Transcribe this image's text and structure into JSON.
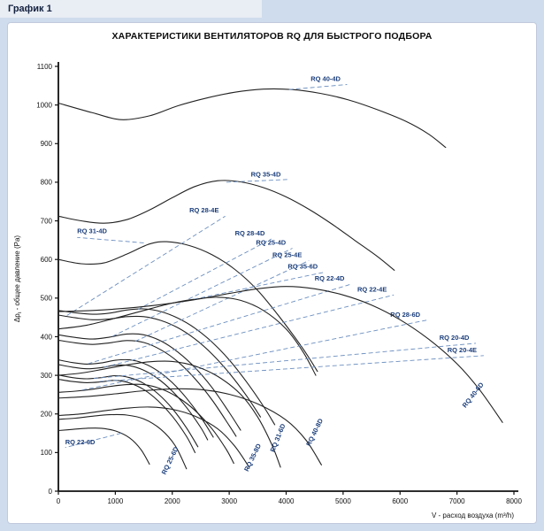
{
  "page": {
    "header": "График 1"
  },
  "chart_data": {
    "type": "line",
    "title": "ХАРАКТЕРИСТИКИ ВЕНТИЛЯТОРОВ RQ ДЛЯ БЫСТРОГО ПОДБОРА",
    "xlabel": "V - расход воздуха (m³/h)",
    "ylabel_prefix": "Δp",
    "ylabel_sub": "t",
    "ylabel_rest": " - общее давление (Pa)",
    "xlim": [
      0,
      8000
    ],
    "ylim": [
      0,
      1100
    ],
    "xticks": [
      0,
      1000,
      2000,
      3000,
      4000,
      5000,
      6000,
      7000,
      8000
    ],
    "yticks": [
      0,
      100,
      200,
      300,
      400,
      500,
      600,
      700,
      800,
      900,
      1000,
      1100
    ],
    "grid": false,
    "legend": "none",
    "axis_color": "#111111",
    "curve_color": "#222222",
    "label_color": "#1c3f7c",
    "leader_color": "#6c8fc0",
    "series": [
      {
        "name": "RQ 40-4D",
        "points": [
          [
            0,
            1005
          ],
          [
            600,
            980
          ],
          [
            1100,
            962
          ],
          [
            1600,
            972
          ],
          [
            2100,
            998
          ],
          [
            2600,
            1018
          ],
          [
            3100,
            1033
          ],
          [
            3600,
            1041
          ],
          [
            4100,
            1040
          ],
          [
            4600,
            1030
          ],
          [
            5100,
            1013
          ],
          [
            5600,
            988
          ],
          [
            6100,
            958
          ],
          [
            6500,
            925
          ],
          [
            6800,
            890
          ]
        ],
        "label": {
          "x": 4430,
          "y": 1062,
          "rot": 0
        },
        "leader": [
          4050,
          1040,
          5070,
          1053
        ]
      },
      {
        "name": "RQ 35-4D",
        "points": [
          [
            0,
            712
          ],
          [
            400,
            700
          ],
          [
            800,
            694
          ],
          [
            1200,
            703
          ],
          [
            1600,
            728
          ],
          [
            2000,
            760
          ],
          [
            2400,
            789
          ],
          [
            2800,
            804
          ],
          [
            3200,
            801
          ],
          [
            3600,
            786
          ],
          [
            4000,
            762
          ],
          [
            4400,
            730
          ],
          [
            4800,
            692
          ],
          [
            5200,
            650
          ],
          [
            5600,
            608
          ],
          [
            5900,
            572
          ]
        ],
        "label": {
          "x": 3380,
          "y": 815,
          "rot": 0
        },
        "leader": [
          2950,
          800,
          4020,
          807
        ]
      },
      {
        "name": "RQ 31-4D",
        "points": [
          [
            0,
            600
          ],
          [
            400,
            589
          ],
          [
            800,
            591
          ],
          [
            1200,
            614
          ],
          [
            1600,
            640
          ],
          [
            1900,
            646
          ],
          [
            2300,
            636
          ],
          [
            2700,
            612
          ],
          [
            3100,
            574
          ],
          [
            3500,
            520
          ],
          [
            3900,
            448
          ],
          [
            4300,
            368
          ],
          [
            4550,
            310
          ]
        ],
        "label": {
          "x": 330,
          "y": 668,
          "rot": 0
        },
        "leader": [
          1500,
          643,
          330,
          657
        ]
      },
      {
        "name": "RQ 28-4E",
        "points": [
          [
            0,
            456
          ],
          [
            300,
            449
          ],
          [
            600,
            444
          ],
          [
            900,
            446
          ],
          [
            1200,
            452
          ],
          [
            1500,
            452
          ],
          [
            1800,
            442
          ],
          [
            2100,
            423
          ],
          [
            2400,
            394
          ],
          [
            2700,
            355
          ],
          [
            3000,
            306
          ],
          [
            3300,
            248
          ],
          [
            3550,
            192
          ]
        ],
        "label": {
          "x": 2300,
          "y": 722,
          "rot": 0
        },
        "leader": [
          150,
          455,
          2930,
          712
        ]
      },
      {
        "name": "RQ 28-4D",
        "points": [
          [
            0,
            468
          ],
          [
            300,
            462
          ],
          [
            600,
            458
          ],
          [
            900,
            461
          ],
          [
            1200,
            469
          ],
          [
            1500,
            472
          ],
          [
            1800,
            465
          ],
          [
            2100,
            448
          ],
          [
            2400,
            422
          ],
          [
            2700,
            386
          ],
          [
            3000,
            340
          ],
          [
            3300,
            284
          ],
          [
            3600,
            220
          ],
          [
            3800,
            172
          ]
        ],
        "label": {
          "x": 3100,
          "y": 662,
          "rot": 0
        },
        "leader": [
          1400,
          471,
          3740,
          653
        ]
      },
      {
        "name": "RQ 25-4D",
        "points": [
          [
            0,
            405
          ],
          [
            300,
            398
          ],
          [
            600,
            394
          ],
          [
            900,
            399
          ],
          [
            1200,
            407
          ],
          [
            1500,
            405
          ],
          [
            1800,
            389
          ],
          [
            2100,
            360
          ],
          [
            2400,
            320
          ],
          [
            2700,
            268
          ],
          [
            3000,
            204
          ],
          [
            3200,
            158
          ]
        ],
        "label": {
          "x": 3470,
          "y": 638,
          "rot": 0
        },
        "leader": [
          950,
          401,
          4110,
          629
        ]
      },
      {
        "name": "RQ 25-4E",
        "points": [
          [
            0,
            391
          ],
          [
            300,
            384
          ],
          [
            600,
            380
          ],
          [
            900,
            384
          ],
          [
            1200,
            390
          ],
          [
            1500,
            385
          ],
          [
            1800,
            366
          ],
          [
            2100,
            335
          ],
          [
            2400,
            291
          ],
          [
            2700,
            236
          ],
          [
            3000,
            170
          ],
          [
            3120,
            142
          ]
        ],
        "label": {
          "x": 3760,
          "y": 606,
          "rot": 0
        },
        "leader": [
          1350,
          388,
          4400,
          597
        ]
      },
      {
        "name": "RQ 35-6D",
        "points": [
          [
            0,
            420
          ],
          [
            500,
            430
          ],
          [
            1000,
            448
          ],
          [
            1500,
            468
          ],
          [
            2000,
            487
          ],
          [
            2400,
            497
          ],
          [
            2800,
            502
          ],
          [
            3200,
            494
          ],
          [
            3600,
            468
          ],
          [
            4000,
            420
          ],
          [
            4300,
            360
          ],
          [
            4520,
            300
          ]
        ],
        "label": {
          "x": 4030,
          "y": 576,
          "rot": 0
        },
        "leader": [
          2380,
          497,
          4670,
          567
        ]
      },
      {
        "name": "RQ 22-4D",
        "points": [
          [
            0,
            340
          ],
          [
            250,
            333
          ],
          [
            500,
            329
          ],
          [
            750,
            332
          ],
          [
            1000,
            339
          ],
          [
            1250,
            340
          ],
          [
            1500,
            331
          ],
          [
            1750,
            311
          ],
          [
            2000,
            281
          ],
          [
            2250,
            241
          ],
          [
            2500,
            192
          ],
          [
            2720,
            140
          ]
        ],
        "label": {
          "x": 4500,
          "y": 545,
          "rot": 0
        },
        "leader": [
          520,
          330,
          5140,
          536
        ]
      },
      {
        "name": "RQ 22-4E",
        "points": [
          [
            0,
            328
          ],
          [
            250,
            321
          ],
          [
            500,
            317
          ],
          [
            750,
            320
          ],
          [
            1000,
            326
          ],
          [
            1250,
            325
          ],
          [
            1500,
            313
          ],
          [
            1750,
            291
          ],
          [
            2000,
            259
          ],
          [
            2250,
            217
          ],
          [
            2500,
            165
          ],
          [
            2620,
            133
          ]
        ],
        "label": {
          "x": 5250,
          "y": 517,
          "rot": 0
        },
        "leader": [
          800,
          321,
          5890,
          508
        ]
      },
      {
        "name": "RQ 28-6D",
        "points": [
          [
            0,
            256
          ],
          [
            300,
            259
          ],
          [
            600,
            264
          ],
          [
            900,
            271
          ],
          [
            1200,
            276
          ],
          [
            1500,
            276
          ],
          [
            1800,
            265
          ],
          [
            2100,
            243
          ],
          [
            2400,
            209
          ],
          [
            2700,
            161
          ],
          [
            2950,
            108
          ],
          [
            3080,
            72
          ]
        ],
        "label": {
          "x": 5830,
          "y": 452,
          "rot": 0
        },
        "leader": [
          420,
          262,
          6470,
          443
        ]
      },
      {
        "name": "RQ 20-4D",
        "points": [
          [
            0,
            301
          ],
          [
            250,
            294
          ],
          [
            500,
            291
          ],
          [
            750,
            294
          ],
          [
            1000,
            299
          ],
          [
            1250,
            294
          ],
          [
            1500,
            279
          ],
          [
            1750,
            252
          ],
          [
            2000,
            214
          ],
          [
            2250,
            164
          ],
          [
            2450,
            115
          ]
        ],
        "label": {
          "x": 6690,
          "y": 392,
          "rot": 0
        },
        "leader": [
          620,
          292,
          7330,
          383
        ]
      },
      {
        "name": "RQ 20-4E",
        "points": [
          [
            0,
            290
          ],
          [
            250,
            284
          ],
          [
            500,
            281
          ],
          [
            750,
            283
          ],
          [
            1000,
            287
          ],
          [
            1250,
            280
          ],
          [
            1500,
            263
          ],
          [
            1750,
            234
          ],
          [
            2000,
            194
          ],
          [
            2250,
            142
          ],
          [
            2400,
            100
          ]
        ],
        "label": {
          "x": 6830,
          "y": 360,
          "rot": 0
        },
        "leader": [
          720,
          284,
          7470,
          351
        ]
      },
      {
        "name": "RQ 40-6D",
        "points": [
          [
            0,
            465
          ],
          [
            600,
            468
          ],
          [
            1200,
            474
          ],
          [
            1800,
            483
          ],
          [
            2400,
            496
          ],
          [
            3000,
            512
          ],
          [
            3500,
            524
          ],
          [
            4000,
            530
          ],
          [
            4500,
            524
          ],
          [
            5000,
            508
          ],
          [
            5500,
            482
          ],
          [
            6000,
            444
          ],
          [
            6500,
            394
          ],
          [
            7000,
            330
          ],
          [
            7400,
            262
          ],
          [
            7800,
            178
          ]
        ],
        "label": {
          "x": 7150,
          "y": 215,
          "rot": -52
        }
      },
      {
        "name": "RQ 40-8D",
        "points": [
          [
            0,
            241
          ],
          [
            500,
            245
          ],
          [
            1000,
            252
          ],
          [
            1500,
            260
          ],
          [
            2000,
            265
          ],
          [
            2500,
            263
          ],
          [
            3000,
            251
          ],
          [
            3500,
            226
          ],
          [
            4000,
            184
          ],
          [
            4350,
            132
          ],
          [
            4620,
            68
          ]
        ],
        "label": {
          "x": 4420,
          "y": 115,
          "rot": -64
        }
      },
      {
        "name": "RQ 31-6D",
        "points": [
          [
            0,
            300
          ],
          [
            400,
            306
          ],
          [
            800,
            316
          ],
          [
            1200,
            327
          ],
          [
            1600,
            335
          ],
          [
            2000,
            336
          ],
          [
            2400,
            324
          ],
          [
            2800,
            297
          ],
          [
            3200,
            251
          ],
          [
            3500,
            192
          ],
          [
            3750,
            120
          ],
          [
            3900,
            62
          ]
        ],
        "label": {
          "x": 3790,
          "y": 100,
          "rot": -68
        }
      },
      {
        "name": "RQ 35-8D",
        "points": [
          [
            0,
            196
          ],
          [
            400,
            200
          ],
          [
            800,
            208
          ],
          [
            1200,
            215
          ],
          [
            1600,
            218
          ],
          [
            2000,
            212
          ],
          [
            2400,
            194
          ],
          [
            2800,
            161
          ],
          [
            3100,
            116
          ],
          [
            3350,
            62
          ]
        ],
        "label": {
          "x": 3330,
          "y": 50,
          "rot": -64
        }
      },
      {
        "name": "RQ 25-6D",
        "points": [
          [
            0,
            186
          ],
          [
            300,
            189
          ],
          [
            600,
            194
          ],
          [
            900,
            198
          ],
          [
            1200,
            197
          ],
          [
            1500,
            187
          ],
          [
            1800,
            160
          ],
          [
            2050,
            118
          ],
          [
            2250,
            58
          ]
        ],
        "label": {
          "x": 1880,
          "y": 42,
          "rot": -64
        }
      },
      {
        "name": "RQ 22-6D",
        "points": [
          [
            0,
            157
          ],
          [
            250,
            160
          ],
          [
            500,
            163
          ],
          [
            750,
            163
          ],
          [
            1000,
            156
          ],
          [
            1250,
            138
          ],
          [
            1450,
            108
          ],
          [
            1600,
            70
          ]
        ],
        "label": {
          "x": 120,
          "y": 122,
          "rot": 0
        },
        "leader": [
          1100,
          150,
          120,
          113
        ]
      }
    ]
  }
}
